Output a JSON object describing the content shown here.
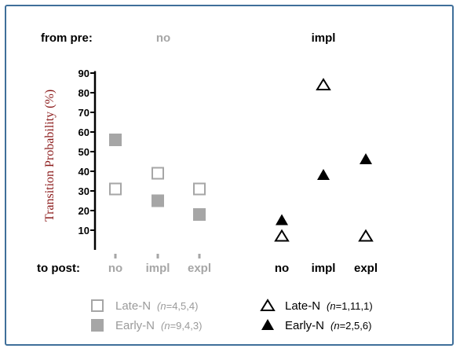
{
  "chart_data": {
    "type": "scatter",
    "ylabel": "Transition Probability (%)",
    "yticks": [
      10,
      20,
      30,
      40,
      50,
      60,
      70,
      80,
      90
    ],
    "from_label": "from pre:",
    "to_label": "to post:",
    "groups": [
      {
        "name": "no",
        "color": "#a6a6a6",
        "categories": [
          "no",
          "impl",
          "expl"
        ],
        "series": [
          {
            "name": "Late-N",
            "marker": "open-square",
            "values": [
              31,
              39,
              31
            ]
          },
          {
            "name": "Early-N",
            "marker": "filled-square",
            "values": [
              56,
              25,
              18
            ]
          }
        ]
      },
      {
        "name": "impl",
        "color": "#000000",
        "categories": [
          "no",
          "impl",
          "expl"
        ],
        "series": [
          {
            "name": "Late-N",
            "marker": "open-triangle",
            "values": [
              7,
              84,
              7
            ]
          },
          {
            "name": "Early-N",
            "marker": "filled-triangle",
            "values": [
              15,
              38,
              46
            ]
          }
        ]
      }
    ],
    "legend": [
      {
        "label": "Late-N",
        "n": "n",
        "counts": "=4,5,4",
        "marker": "open-square",
        "color": "#a6a6a6"
      },
      {
        "label": "Early-N",
        "n": "n",
        "counts": "=9,4,3",
        "marker": "filled-square",
        "color": "#a6a6a6"
      },
      {
        "label": "Late-N",
        "n": "n",
        "counts": "=1,11,1",
        "marker": "open-triangle",
        "color": "#000000"
      },
      {
        "label": "Early-N",
        "n": "n",
        "counts": "=2,5,6",
        "marker": "filled-triangle",
        "color": "#000000"
      }
    ]
  }
}
